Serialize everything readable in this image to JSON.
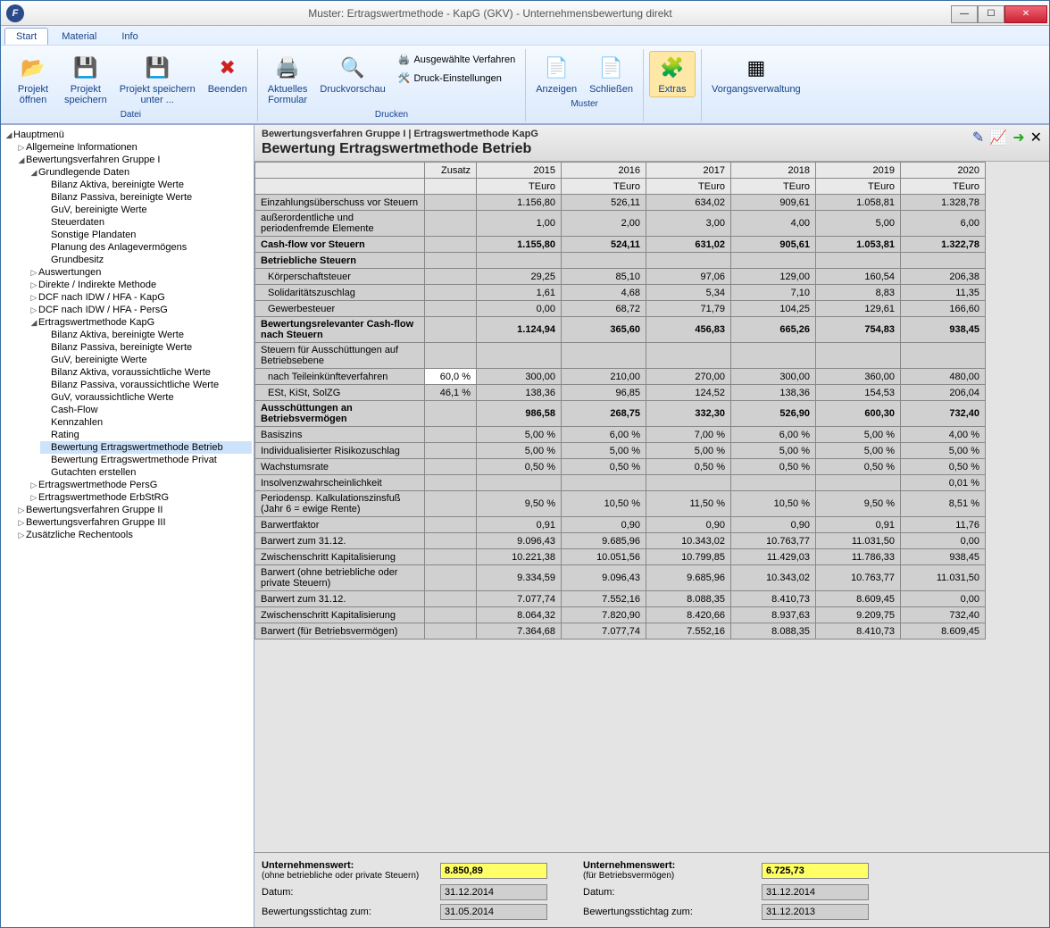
{
  "window": {
    "title": "Muster: Ertragswertmethode - KapG (GKV) - Unternehmensbewertung direkt"
  },
  "tabs": {
    "start": "Start",
    "material": "Material",
    "info": "Info"
  },
  "ribbon": {
    "datei": {
      "label": "Datei",
      "open": "Projekt\nöffnen",
      "save": "Projekt\nspeichern",
      "saveas": "Projekt speichern\nunter ...",
      "quit": "Beenden"
    },
    "drucken": {
      "label": "Drucken",
      "form": "Aktuelles\nFormular",
      "preview": "Druckvorschau",
      "selproc": "Ausgewählte Verfahren",
      "settings": "Druck-Einstellungen"
    },
    "muster": {
      "label": "Muster",
      "show": "Anzeigen",
      "close": "Schließen"
    },
    "extras": "Extras",
    "vorgang": "Vorgangsverwaltung"
  },
  "tree": {
    "root": "Hauptmenü",
    "allg": "Allgemeine Informationen",
    "g1": "Bewertungsverfahren Gruppe I",
    "grund": "Grundlegende Daten",
    "grund_items": [
      "Bilanz Aktiva, bereinigte Werte",
      "Bilanz Passiva, bereinigte Werte",
      "GuV, bereinigte Werte",
      "Steuerdaten",
      "Sonstige Plandaten",
      "Planung des Anlagevermögens",
      "Grundbesitz"
    ],
    "ausw": "Auswertungen",
    "dirind": "Direkte / Indirekte Methode",
    "dcf1": "DCF nach IDW / HFA - KapG",
    "dcf2": "DCF nach IDW / HFA - PersG",
    "ewk": "Ertragswertmethode KapG",
    "ewk_items": [
      "Bilanz Aktiva, bereinigte Werte",
      "Bilanz Passiva, bereinigte Werte",
      "GuV, bereinigte Werte",
      "Bilanz Aktiva, voraussichtliche Werte",
      "Bilanz Passiva, voraussichtliche Werte",
      "GuV, voraussichtliche Werte",
      "Cash-Flow",
      "Kennzahlen",
      "Rating",
      "Bewertung Ertragswertmethode Betrieb",
      "Bewertung Ertragswertmethode Privat",
      "Gutachten erstellen"
    ],
    "ewp": "Ertragswertmethode PersG",
    "ewe": "Ertragswertmethode ErbStRG",
    "g2": "Bewertungsverfahren Gruppe II",
    "g3": "Bewertungsverfahren Gruppe III",
    "tools": "Zusätzliche Rechentools"
  },
  "content": {
    "breadcrumb": "Bewertungsverfahren Gruppe I | Ertragswertmethode KapG",
    "title": "Bewertung Ertragswertmethode Betrieb",
    "cols": {
      "zusatz": "Zusatz",
      "years": [
        "2015",
        "2016",
        "2017",
        "2018",
        "2019",
        "2020"
      ],
      "unit": "TEuro"
    },
    "rows": [
      {
        "type": "data",
        "lbl": "Einzahlungsüberschuss vor Steuern",
        "v": [
          "1.156,80",
          "526,11",
          "634,02",
          "909,61",
          "1.058,81",
          "1.328,78"
        ]
      },
      {
        "type": "data",
        "lbl": "außerordentliche und periodenfremde Elemente",
        "v": [
          "1,00",
          "2,00",
          "3,00",
          "4,00",
          "5,00",
          "6,00"
        ]
      },
      {
        "type": "bold",
        "lbl": "Cash-flow vor Steuern",
        "v": [
          "1.155,80",
          "524,11",
          "631,02",
          "905,61",
          "1.053,81",
          "1.322,78"
        ]
      },
      {
        "type": "sect",
        "lbl": "Betriebliche Steuern",
        "v": [
          "",
          "",
          "",
          "",
          "",
          ""
        ]
      },
      {
        "type": "data",
        "lbl": "Körperschaftsteuer",
        "indent": true,
        "v": [
          "29,25",
          "85,10",
          "97,06",
          "129,00",
          "160,54",
          "206,38"
        ]
      },
      {
        "type": "data",
        "lbl": "Solidaritätszuschlag",
        "indent": true,
        "v": [
          "1,61",
          "4,68",
          "5,34",
          "7,10",
          "8,83",
          "11,35"
        ]
      },
      {
        "type": "data",
        "lbl": "Gewerbesteuer",
        "indent": true,
        "v": [
          "0,00",
          "68,72",
          "71,79",
          "104,25",
          "129,61",
          "166,60"
        ]
      },
      {
        "type": "bold",
        "lbl": "Bewertungsrelevanter Cash-flow nach Steuern",
        "v": [
          "1.124,94",
          "365,60",
          "456,83",
          "665,26",
          "754,83",
          "938,45"
        ]
      },
      {
        "type": "data",
        "lbl": "Steuern für Ausschüttungen auf Betriebsebene",
        "v": [
          "",
          "",
          "",
          "",
          "",
          ""
        ]
      },
      {
        "type": "data",
        "lbl": "nach Teileinkünfteverfahren",
        "indent": true,
        "zus": "60,0 %",
        "zedit": true,
        "v": [
          "300,00",
          "210,00",
          "270,00",
          "300,00",
          "360,00",
          "480,00"
        ]
      },
      {
        "type": "data",
        "lbl": "ESt, KiSt, SolZG",
        "indent": true,
        "zus": "46,1 %",
        "v": [
          "138,36",
          "96,85",
          "124,52",
          "138,36",
          "154,53",
          "206,04"
        ]
      },
      {
        "type": "bold",
        "lbl": "Ausschüttungen an Betriebsvermögen",
        "v": [
          "986,58",
          "268,75",
          "332,30",
          "526,90",
          "600,30",
          "732,40"
        ]
      },
      {
        "type": "data",
        "lbl": "Basiszins",
        "v": [
          "5,00 %",
          "6,00 %",
          "7,00 %",
          "6,00 %",
          "5,00 %",
          "4,00 %"
        ]
      },
      {
        "type": "data",
        "lbl": "Individualisierter Risikozuschlag",
        "v": [
          "5,00 %",
          "5,00 %",
          "5,00 %",
          "5,00 %",
          "5,00 %",
          "5,00 %"
        ]
      },
      {
        "type": "data",
        "lbl": "Wachstumsrate",
        "v": [
          "0,50 %",
          "0,50 %",
          "0,50 %",
          "0,50 %",
          "0,50 %",
          "0,50 %"
        ]
      },
      {
        "type": "data",
        "lbl": "Insolvenzwahrscheinlichkeit",
        "v": [
          "",
          "",
          "",
          "",
          "",
          "0,01 %"
        ]
      },
      {
        "type": "data",
        "lbl": "Periodensp. Kalkulationszinsfuß (Jahr 6 = ewige Rente)",
        "v": [
          "9,50 %",
          "10,50 %",
          "11,50 %",
          "10,50 %",
          "9,50 %",
          "8,51 %"
        ]
      },
      {
        "type": "data",
        "lbl": "Barwertfaktor",
        "v": [
          "0,91",
          "0,90",
          "0,90",
          "0,90",
          "0,91",
          "11,76"
        ]
      },
      {
        "type": "data",
        "lbl": "Barwert zum 31.12.",
        "v": [
          "9.096,43",
          "9.685,96",
          "10.343,02",
          "10.763,77",
          "11.031,50",
          "0,00"
        ]
      },
      {
        "type": "data",
        "lbl": "Zwischenschritt Kapitalisierung",
        "v": [
          "10.221,38",
          "10.051,56",
          "10.799,85",
          "11.429,03",
          "11.786,33",
          "938,45"
        ]
      },
      {
        "type": "data",
        "lbl": "Barwert (ohne betriebliche oder private Steuern)",
        "v": [
          "9.334,59",
          "9.096,43",
          "9.685,96",
          "10.343,02",
          "10.763,77",
          "11.031,50"
        ]
      },
      {
        "type": "data",
        "lbl": "Barwert zum 31.12.",
        "v": [
          "7.077,74",
          "7.552,16",
          "8.088,35",
          "8.410,73",
          "8.609,45",
          "0,00"
        ]
      },
      {
        "type": "data",
        "lbl": "Zwischenschritt Kapitalisierung",
        "v": [
          "8.064,32",
          "7.820,90",
          "8.420,66",
          "8.937,63",
          "9.209,75",
          "732,40"
        ]
      },
      {
        "type": "data",
        "lbl": "Barwert (für Betriebsvermögen)",
        "v": [
          "7.364,68",
          "7.077,74",
          "7.552,16",
          "8.088,35",
          "8.410,73",
          "8.609,45"
        ]
      }
    ]
  },
  "footer": {
    "left": {
      "uw_lbl": "Unternehmenswert:",
      "uw_sub": "(ohne betriebliche oder private Steuern)",
      "uw_val": "8.850,89",
      "datum_lbl": "Datum:",
      "datum_val": "31.12.2014",
      "stich_lbl": "Bewertungsstichtag zum:",
      "stich_val": "31.05.2014"
    },
    "right": {
      "uw_lbl": "Unternehmenswert:",
      "uw_sub": "(für Betriebsvermögen)",
      "uw_val": "6.725,73",
      "datum_lbl": "Datum:",
      "datum_val": "31.12.2014",
      "stich_lbl": "Bewertungsstichtag zum:",
      "stich_val": "31.12.2013"
    }
  }
}
